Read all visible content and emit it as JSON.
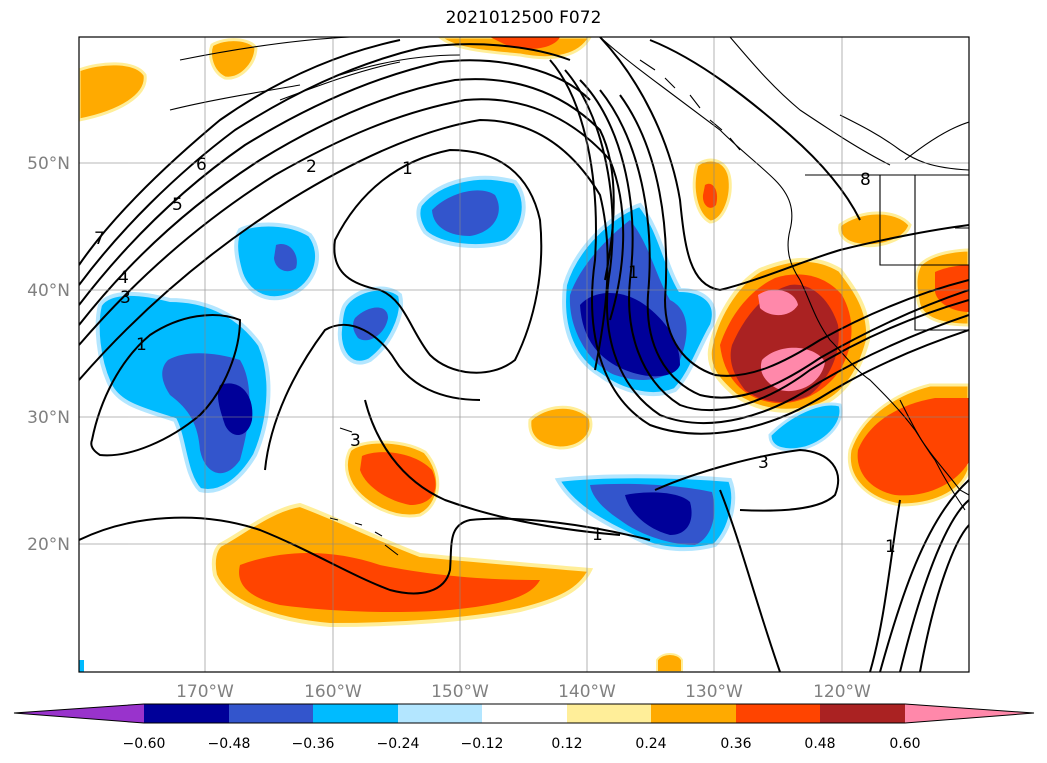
{
  "title": "2021012500 F072",
  "map": {
    "lat_labels": [
      "50°N",
      "40°N",
      "30°N",
      "20°N"
    ],
    "lon_labels": [
      "170°W",
      "160°W",
      "150°W",
      "140°W",
      "130°W",
      "120°W"
    ],
    "contour_labels": [
      "7",
      "6",
      "5",
      "4",
      "3",
      "2",
      "1",
      "1",
      "1",
      "3",
      "3",
      "1",
      "8",
      "1"
    ]
  },
  "colorbar": {
    "labels": [
      "−0.60",
      "−0.48",
      "−0.36",
      "−0.24",
      "−0.12",
      "0.12",
      "0.24",
      "0.36",
      "0.48",
      "0.60"
    ],
    "colors": {
      "lt_min": "#9933cc",
      "c1": "#000099",
      "c2": "#3355cc",
      "c3": "#00bbff",
      "c4": "#b3e6ff",
      "c5": "#ffffff",
      "c6": "#ffee99",
      "c7": "#ffaa00",
      "c8": "#ff4400",
      "c9": "#aa2222",
      "gt_max": "#ff88aa"
    }
  }
}
